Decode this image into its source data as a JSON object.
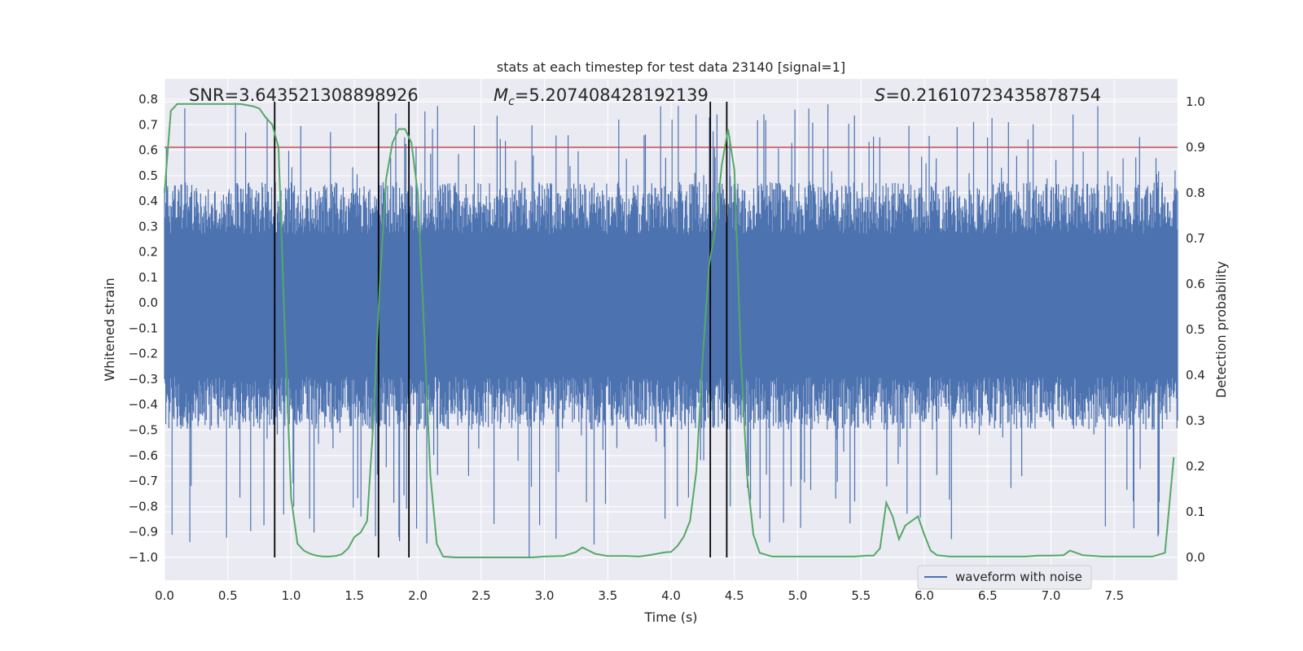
{
  "chart_data": {
    "type": "line",
    "title": "stats at each timestep for test data 23140 [signal=1]",
    "xlabel": "Time (s)",
    "ylabel": "Whitened strain",
    "y2label": "Detection probability",
    "xlim": [
      0.0,
      8.0
    ],
    "ylim": [
      -1.09,
      0.88
    ],
    "y2lim": [
      -0.05,
      1.05
    ],
    "x_ticks": [
      0.0,
      0.5,
      1.0,
      1.5,
      2.0,
      2.5,
      3.0,
      3.5,
      4.0,
      4.5,
      5.0,
      5.5,
      6.0,
      6.5,
      7.0,
      7.5
    ],
    "x_tick_labels": [
      "0.0",
      "0.5",
      "1.0",
      "1.5",
      "2.0",
      "2.5",
      "3.0",
      "3.5",
      "4.0",
      "4.5",
      "5.0",
      "5.5",
      "6.0",
      "6.5",
      "7.0",
      "7.5"
    ],
    "y_ticks": [
      0.8,
      0.7,
      0.6,
      0.5,
      0.4,
      0.3,
      0.2,
      0.1,
      0.0,
      -0.1,
      -0.2,
      -0.3,
      -0.4,
      -0.5,
      -0.6,
      -0.7,
      -0.8,
      -0.9,
      -1.0
    ],
    "y_tick_labels": [
      "0.8",
      "0.7",
      "0.6",
      "0.5",
      "0.4",
      "0.3",
      "0.2",
      "0.1",
      "0.0",
      "−0.1",
      "−0.2",
      "−0.3",
      "−0.4",
      "−0.5",
      "−0.6",
      "−0.7",
      "−0.8",
      "−0.9",
      "−1.0"
    ],
    "y2_ticks": [
      1.0,
      0.9,
      0.8,
      0.7,
      0.6,
      0.5,
      0.4,
      0.3,
      0.2,
      0.1,
      0.0
    ],
    "y2_tick_labels": [
      "1.0",
      "0.9",
      "0.8",
      "0.7",
      "0.6",
      "0.5",
      "0.4",
      "0.3",
      "0.2",
      "0.1",
      "0.0"
    ],
    "annotations": {
      "snr": "SNR=3.643521308898926",
      "mc_symbol": "M",
      "mc_sub": "c",
      "mc_value": "=5.207408428192139",
      "s_symbol": "S",
      "s_value": "=0.21610723435878754"
    },
    "threshold": 0.9,
    "event_lines_x": [
      0.87,
      1.69,
      1.93,
      4.31,
      4.44
    ],
    "waveform": {
      "name": "waveform with noise",
      "seed": 23140,
      "n_samples": 1600,
      "core_amplitude": 0.27,
      "spike_up_max": 0.79,
      "spike_down_min": -1.0
    },
    "series": [
      {
        "name": "waveform with noise",
        "role": "strain"
      },
      {
        "name": "detection probability",
        "role": "probability",
        "x": [
          0.0,
          0.05,
          0.1,
          0.2,
          0.3,
          0.4,
          0.5,
          0.6,
          0.7,
          0.75,
          0.8,
          0.85,
          0.9,
          0.95,
          1.0,
          1.05,
          1.1,
          1.15,
          1.2,
          1.25,
          1.3,
          1.35,
          1.4,
          1.45,
          1.5,
          1.55,
          1.6,
          1.65,
          1.7,
          1.75,
          1.8,
          1.85,
          1.9,
          1.95,
          2.0,
          2.05,
          2.1,
          2.15,
          2.2,
          2.3,
          2.5,
          2.7,
          2.9,
          3.0,
          3.15,
          3.25,
          3.3,
          3.4,
          3.5,
          3.65,
          3.75,
          3.85,
          3.95,
          4.0,
          4.05,
          4.1,
          4.15,
          4.2,
          4.25,
          4.3,
          4.35,
          4.4,
          4.45,
          4.5,
          4.55,
          4.6,
          4.65,
          4.7,
          4.8,
          5.0,
          5.3,
          5.45,
          5.55,
          5.6,
          5.65,
          5.7,
          5.75,
          5.8,
          5.85,
          5.95,
          6.0,
          6.05,
          6.1,
          6.2,
          6.5,
          6.8,
          6.9,
          7.0,
          7.1,
          7.15,
          7.25,
          7.4,
          7.8,
          7.9,
          7.97
        ],
        "y": [
          0.8,
          0.98,
          0.995,
          0.995,
          0.995,
          0.995,
          0.995,
          0.995,
          0.99,
          0.985,
          0.965,
          0.95,
          0.9,
          0.5,
          0.13,
          0.03,
          0.015,
          0.008,
          0.004,
          0.002,
          0.002,
          0.003,
          0.007,
          0.02,
          0.045,
          0.055,
          0.08,
          0.3,
          0.6,
          0.83,
          0.91,
          0.94,
          0.94,
          0.91,
          0.8,
          0.5,
          0.18,
          0.03,
          0.002,
          0.0,
          0.0,
          0.0,
          0.0,
          0.002,
          0.003,
          0.012,
          0.022,
          0.008,
          0.003,
          0.003,
          0.002,
          0.006,
          0.011,
          0.012,
          0.025,
          0.045,
          0.08,
          0.19,
          0.44,
          0.64,
          0.72,
          0.86,
          0.94,
          0.85,
          0.45,
          0.18,
          0.05,
          0.01,
          0.002,
          0.002,
          0.002,
          0.002,
          0.004,
          0.004,
          0.02,
          0.12,
          0.09,
          0.04,
          0.07,
          0.09,
          0.05,
          0.015,
          0.005,
          0.002,
          0.002,
          0.002,
          0.004,
          0.004,
          0.005,
          0.015,
          0.005,
          0.002,
          0.002,
          0.01,
          0.22
        ]
      }
    ],
    "legend": {
      "label": "waveform with noise",
      "placement": "lower-right"
    }
  },
  "colors": {
    "background": "#eaeaf2",
    "grid": "#ffffff",
    "waveform": "#4c72b0",
    "probability": "#55a868",
    "threshold": "#c44e52",
    "event_line": "#000000"
  }
}
